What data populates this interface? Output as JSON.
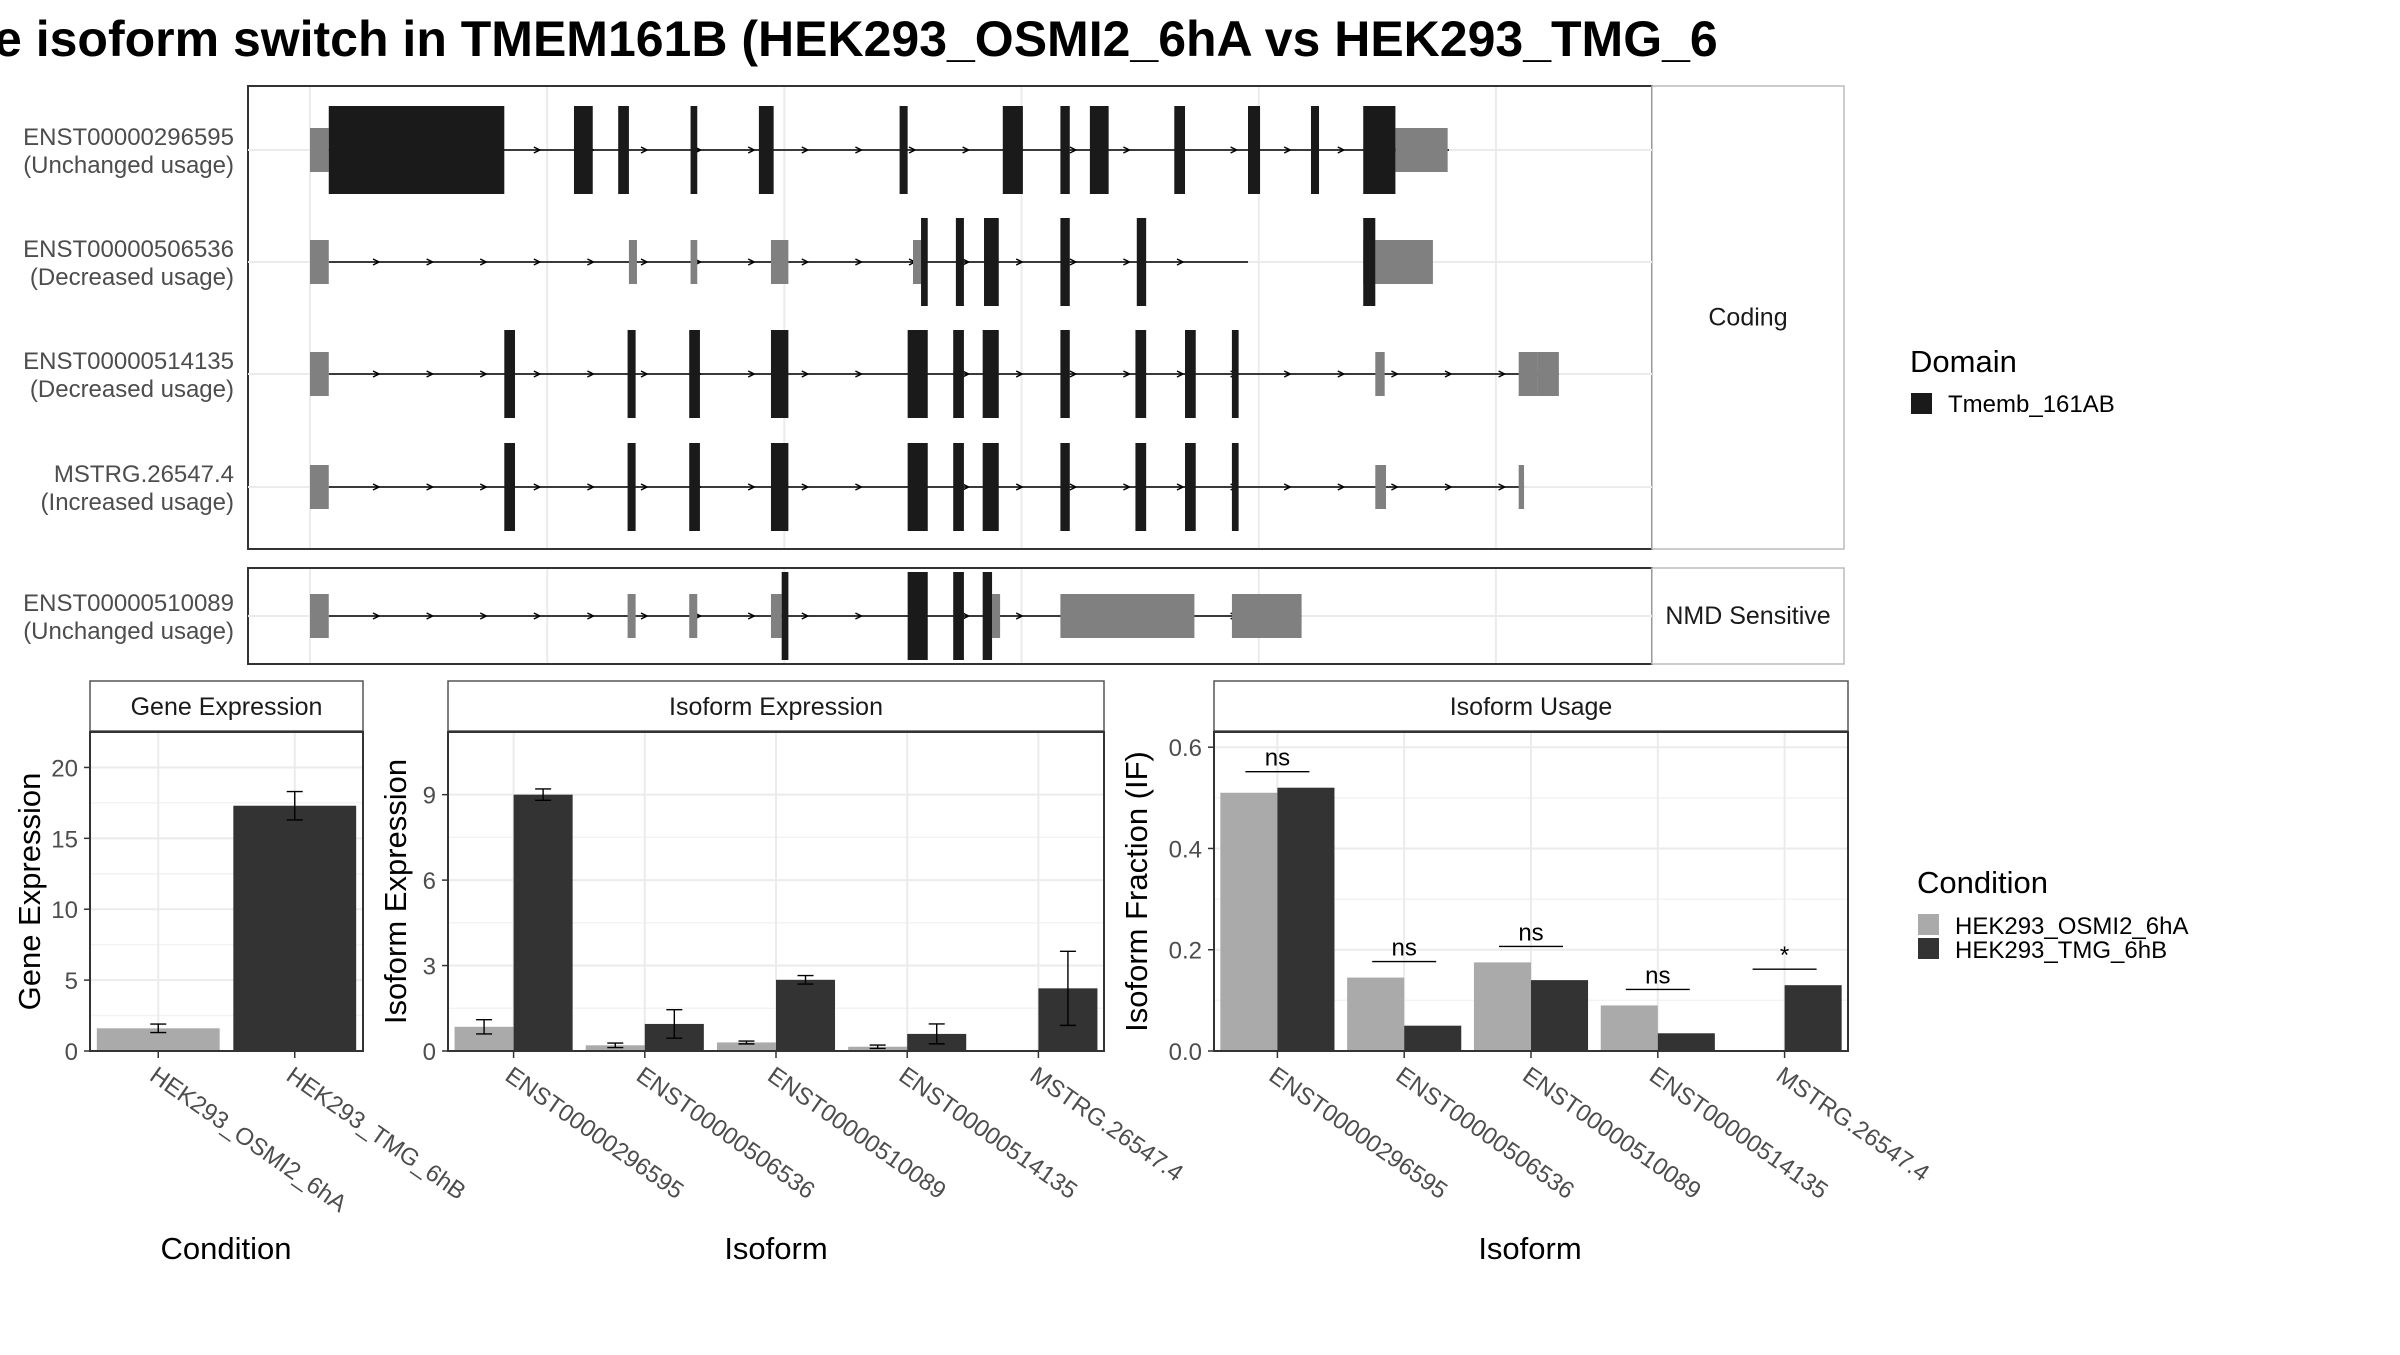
{
  "title": "e isoform switch in TMEM161B (HEK293_OSMI2_6hA vs HEK293_TMG_6",
  "colors": {
    "domain": "#1a1a1a",
    "utr": "#808080",
    "cond1": "#aaaaaa",
    "cond2": "#333333",
    "panel_border": "#333333",
    "grid": "#ebebeb",
    "strip_text": "#1a1a1a",
    "axis_text": "#4d4d4d"
  },
  "transcripts": {
    "groups": [
      {
        "label": "Coding",
        "rows": [
          {
            "id": "ENST00000296595",
            "usage": "(Unchanged usage)",
            "utr": [
              [
                0,
                14
              ]
            ],
            "cds": [
              [
                14,
                145
              ],
              [
                197,
                211
              ],
              [
                230,
                238
              ],
              [
                284,
                289
              ],
              [
                335,
                346
              ],
              [
                440,
                446
              ],
              [
                517,
                532
              ],
              [
                560,
                567
              ],
              [
                582,
                596
              ],
              [
                645,
                653
              ],
              [
                700,
                709
              ],
              [
                747,
                753
              ],
              [
                786,
                810
              ]
            ],
            "tail": [
              [
                810,
                849
              ]
            ]
          },
          {
            "id": "ENST00000506536",
            "usage": "(Decreased usage)",
            "utr": [
              [
                0,
                14
              ],
              [
                238,
                244
              ],
              [
                284,
                289
              ],
              [
                344,
                357
              ],
              [
                450,
                456
              ],
              [
                786,
                795
              ],
              [
                795,
                838
              ]
            ],
            "cds": [
              [
                456,
                461
              ],
              [
                482,
                488
              ],
              [
                503,
                514
              ],
              [
                560,
                567
              ],
              [
                617,
                624
              ],
              [
                786,
                795
              ]
            ]
          },
          {
            "id": "ENST00000514135",
            "usage": "(Decreased usage)",
            "utr": [
              [
                0,
                14
              ],
              [
                795,
                802
              ],
              [
                902,
                916
              ],
              [
                916,
                932
              ]
            ],
            "cds": [
              [
                145,
                153
              ],
              [
                237,
                243
              ],
              [
                283,
                291
              ],
              [
                344,
                357
              ],
              [
                446,
                461
              ],
              [
                480,
                488
              ],
              [
                502,
                514
              ],
              [
                560,
                567
              ],
              [
                616,
                624
              ],
              [
                653,
                661
              ],
              [
                688,
                693
              ]
            ]
          },
          {
            "id": "MSTRG.26547.4",
            "usage": "(Increased usage)",
            "utr": [
              [
                0,
                14
              ],
              [
                795,
                803
              ],
              [
                902,
                906
              ]
            ],
            "cds": [
              [
                145,
                153
              ],
              [
                237,
                243
              ],
              [
                283,
                291
              ],
              [
                344,
                357
              ],
              [
                446,
                461
              ],
              [
                480,
                488
              ],
              [
                502,
                514
              ],
              [
                560,
                567
              ],
              [
                616,
                624
              ],
              [
                653,
                661
              ],
              [
                688,
                693
              ]
            ]
          }
        ]
      },
      {
        "label": "NMD Sensitive",
        "rows": [
          {
            "id": "ENST00000510089",
            "usage": "(Unchanged usage)",
            "utr": [
              [
                0,
                14
              ],
              [
                237,
                243
              ],
              [
                283,
                289
              ],
              [
                344,
                352
              ],
              [
                509,
                515
              ],
              [
                560,
                660
              ],
              [
                688,
                740
              ]
            ],
            "cds": [
              [
                352,
                357
              ],
              [
                446,
                461
              ],
              [
                480,
                488
              ],
              [
                502,
                509
              ]
            ]
          }
        ]
      }
    ],
    "legend": {
      "title": "Domain",
      "items": [
        "Tmemb_161AB"
      ]
    }
  },
  "chart_data": [
    {
      "type": "bar",
      "title": "Gene Expression",
      "xlabel": "Condition",
      "ylabel": "Gene Expression",
      "ylim": [
        0,
        22.5
      ],
      "yticks": [
        0,
        5,
        10,
        15,
        20
      ],
      "categories": [
        "HEK293_OSMI2_6hA",
        "HEK293_TMG_6hB"
      ],
      "series": [
        {
          "name": "HEK293_OSMI2_6hA",
          "values": [
            1.6,
            null
          ],
          "err": [
            0.3,
            null
          ]
        },
        {
          "name": "HEK293_TMG_6hB",
          "values": [
            null,
            17.3
          ],
          "err": [
            null,
            1.0
          ]
        }
      ]
    },
    {
      "type": "bar",
      "title": "Isoform Expression",
      "xlabel": "Isoform",
      "ylabel": "Isoform Expression",
      "ylim": [
        0,
        11.2
      ],
      "yticks": [
        0,
        3,
        6,
        9
      ],
      "categories": [
        "ENST00000296595",
        "ENST00000506536",
        "ENST00000510089",
        "ENST00000514135",
        "MSTRG.26547.4"
      ],
      "series": [
        {
          "name": "HEK293_OSMI2_6hA",
          "values": [
            0.85,
            0.2,
            0.3,
            0.15,
            0.0
          ],
          "err": [
            0.25,
            0.08,
            0.05,
            0.06,
            0.0
          ]
        },
        {
          "name": "HEK293_TMG_6hB",
          "values": [
            9.0,
            0.95,
            2.5,
            0.6,
            2.2
          ],
          "err": [
            0.2,
            0.5,
            0.15,
            0.35,
            1.3
          ]
        }
      ]
    },
    {
      "type": "bar",
      "title": "Isoform Usage",
      "xlabel": "Isoform",
      "ylabel": "Isoform Fraction (IF)",
      "ylim": [
        0,
        0.63
      ],
      "yticks": [
        0.0,
        0.2,
        0.4,
        0.6
      ],
      "ytick_labels": [
        "0.0",
        "0.2",
        "0.4",
        "0.6"
      ],
      "categories": [
        "ENST00000296595",
        "ENST00000506536",
        "ENST00000510089",
        "ENST00000514135",
        "MSTRG.26547.4"
      ],
      "series": [
        {
          "name": "HEK293_OSMI2_6hA",
          "values": [
            0.51,
            0.145,
            0.175,
            0.09,
            0.0
          ]
        },
        {
          "name": "HEK293_TMG_6hB",
          "values": [
            0.52,
            0.05,
            0.14,
            0.035,
            0.13
          ]
        }
      ],
      "significance": [
        "ns",
        "ns",
        "ns",
        "ns",
        "*"
      ]
    }
  ],
  "condition_legend": {
    "title": "Condition",
    "items": [
      "HEK293_OSMI2_6hA",
      "HEK293_TMG_6hB"
    ]
  }
}
